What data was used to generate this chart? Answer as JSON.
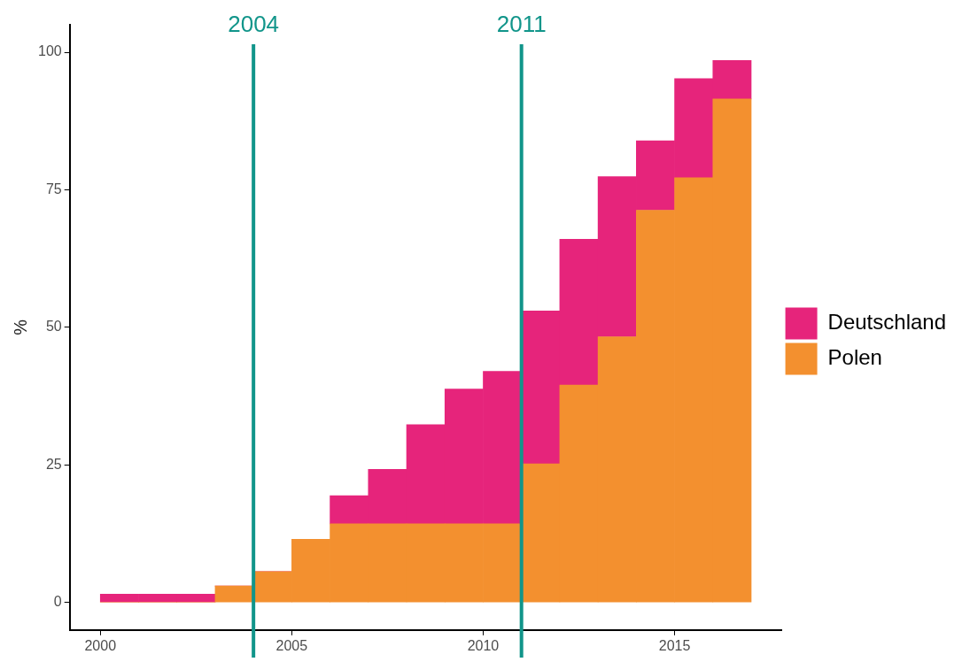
{
  "chart_data": {
    "type": "bar",
    "stacked": true,
    "ylabel": "%",
    "x": [
      2000.5,
      2001.5,
      2002.5,
      2003.5,
      2004.5,
      2005.5,
      2006.5,
      2007.5,
      2008.5,
      2009.5,
      2010.5,
      2011.5,
      2012.5,
      2013.5,
      2014.5,
      2015.5,
      2016.5
    ],
    "series": [
      {
        "name": "Polen",
        "color": "#f3902f",
        "values": [
          0,
          0,
          0,
          3.0,
          5.6,
          11.5,
          14.3,
          14.3,
          14.3,
          14.3,
          14.3,
          25.2,
          39.5,
          48.3,
          71.3,
          77.2,
          91.5
        ]
      },
      {
        "name": "Deutschland",
        "color": "#e6247b",
        "values": [
          1.5,
          1.5,
          1.5,
          0,
          0,
          0,
          5.1,
          9.9,
          18.0,
          24.5,
          27.7,
          27.8,
          26.5,
          29.1,
          12.6,
          18.0,
          7.0
        ]
      }
    ],
    "xlim": [
      1999.2,
      2017.8
    ],
    "xticks": [
      2000,
      2005,
      2010,
      2015
    ],
    "ylim": [
      -5,
      105
    ],
    "yticks": [
      0,
      25,
      50,
      75,
      100
    ],
    "ref_lines": [
      {
        "axis": "x",
        "value": 2004,
        "label": "2004",
        "color": "#11958a"
      },
      {
        "axis": "x",
        "value": 2011,
        "label": "2011",
        "color": "#11958a"
      }
    ],
    "grid": false,
    "legend": "right"
  }
}
